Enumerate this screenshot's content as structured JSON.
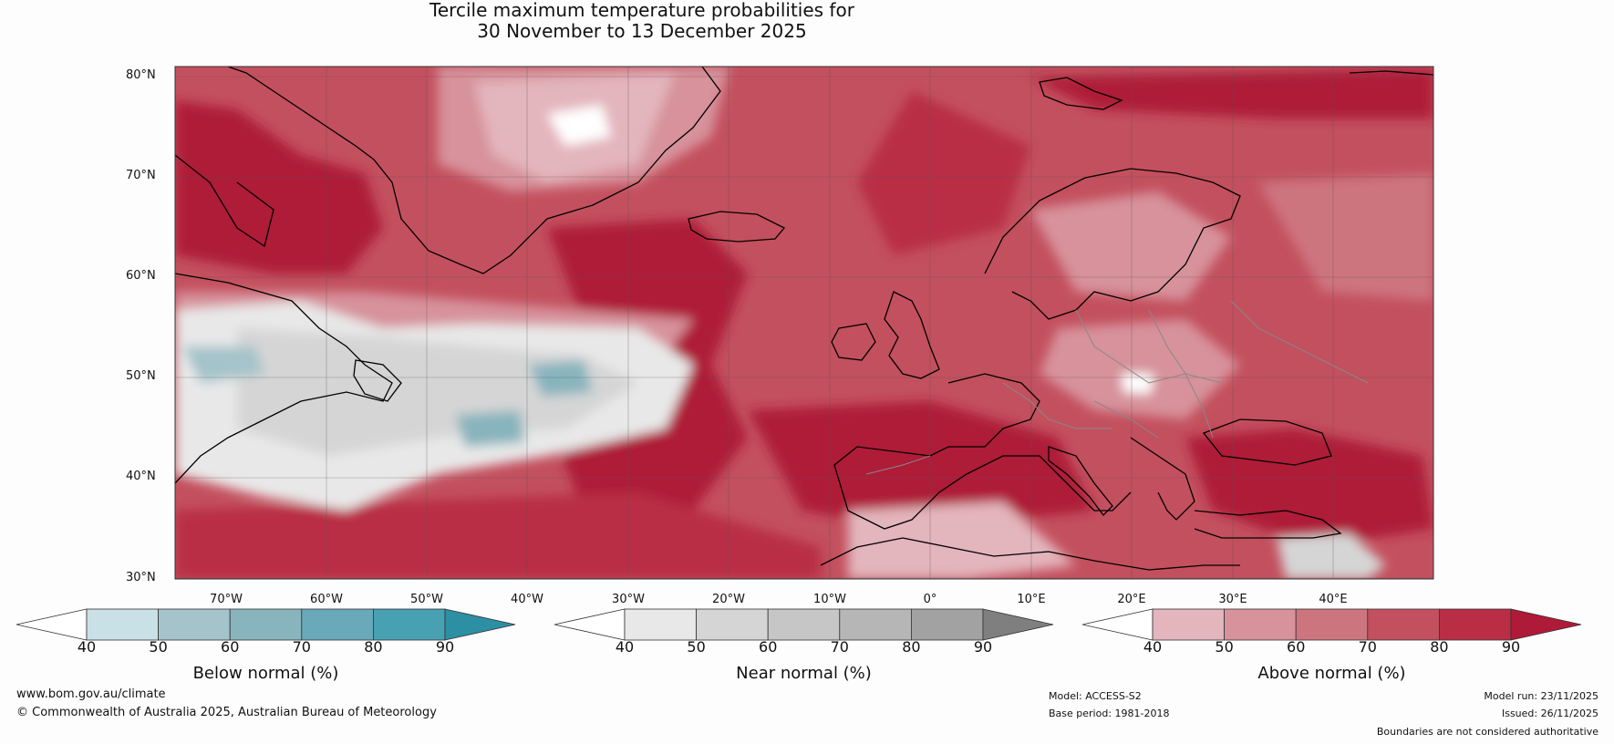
{
  "title": {
    "line1": "Tercile maximum temperature probabilities for",
    "line2": "30 November to 13 December 2025"
  },
  "map": {
    "latitude_labels": [
      "80°N",
      "70°N",
      "60°N",
      "50°N",
      "40°N",
      "30°N"
    ],
    "longitude_labels": [
      "70°W",
      "60°W",
      "50°W",
      "40°W",
      "30°W",
      "20°W",
      "10°W",
      "0°",
      "10°E",
      "20°E",
      "30°E",
      "40°E"
    ],
    "extent": {
      "lon_min": -75,
      "lon_max": 50,
      "lat_min": 30,
      "lat_max": 81
    }
  },
  "legends": [
    {
      "name": "below",
      "title": "Below normal (%)",
      "ticks": [
        "40",
        "50",
        "60",
        "70",
        "80",
        "90"
      ],
      "colors": [
        "#ffffff",
        "#c9e0e6",
        "#a4c3ca",
        "#88b4bd",
        "#69a9b9",
        "#47a1b3",
        "#2d8fa3"
      ]
    },
    {
      "name": "near",
      "title": "Near normal (%)",
      "ticks": [
        "40",
        "50",
        "60",
        "70",
        "80",
        "90"
      ],
      "colors": [
        "#ffffff",
        "#e8e8e8",
        "#d5d5d5",
        "#c6c6c6",
        "#b6b6b6",
        "#a2a2a2",
        "#7f7f7f"
      ]
    },
    {
      "name": "above",
      "title": "Above normal (%)",
      "ticks": [
        "40",
        "50",
        "60",
        "70",
        "80",
        "90"
      ],
      "colors": [
        "#ffffff",
        "#e3b5bc",
        "#d7929b",
        "#cd757f",
        "#c3505e",
        "#b92e45",
        "#ae1a38"
      ]
    }
  ],
  "footer": {
    "website": "www.bom.gov.au/climate",
    "copyright": "© Commonwealth of Australia 2025, Australian Bureau of Meteorology",
    "model": "Model: ACCESS-S2",
    "base_period": "Base period: 1981-2018",
    "model_run": "Model run: 23/11/2025",
    "issued": "Issued: 26/11/2025",
    "disclaimer": "Boundaries are not considered authoritative"
  }
}
